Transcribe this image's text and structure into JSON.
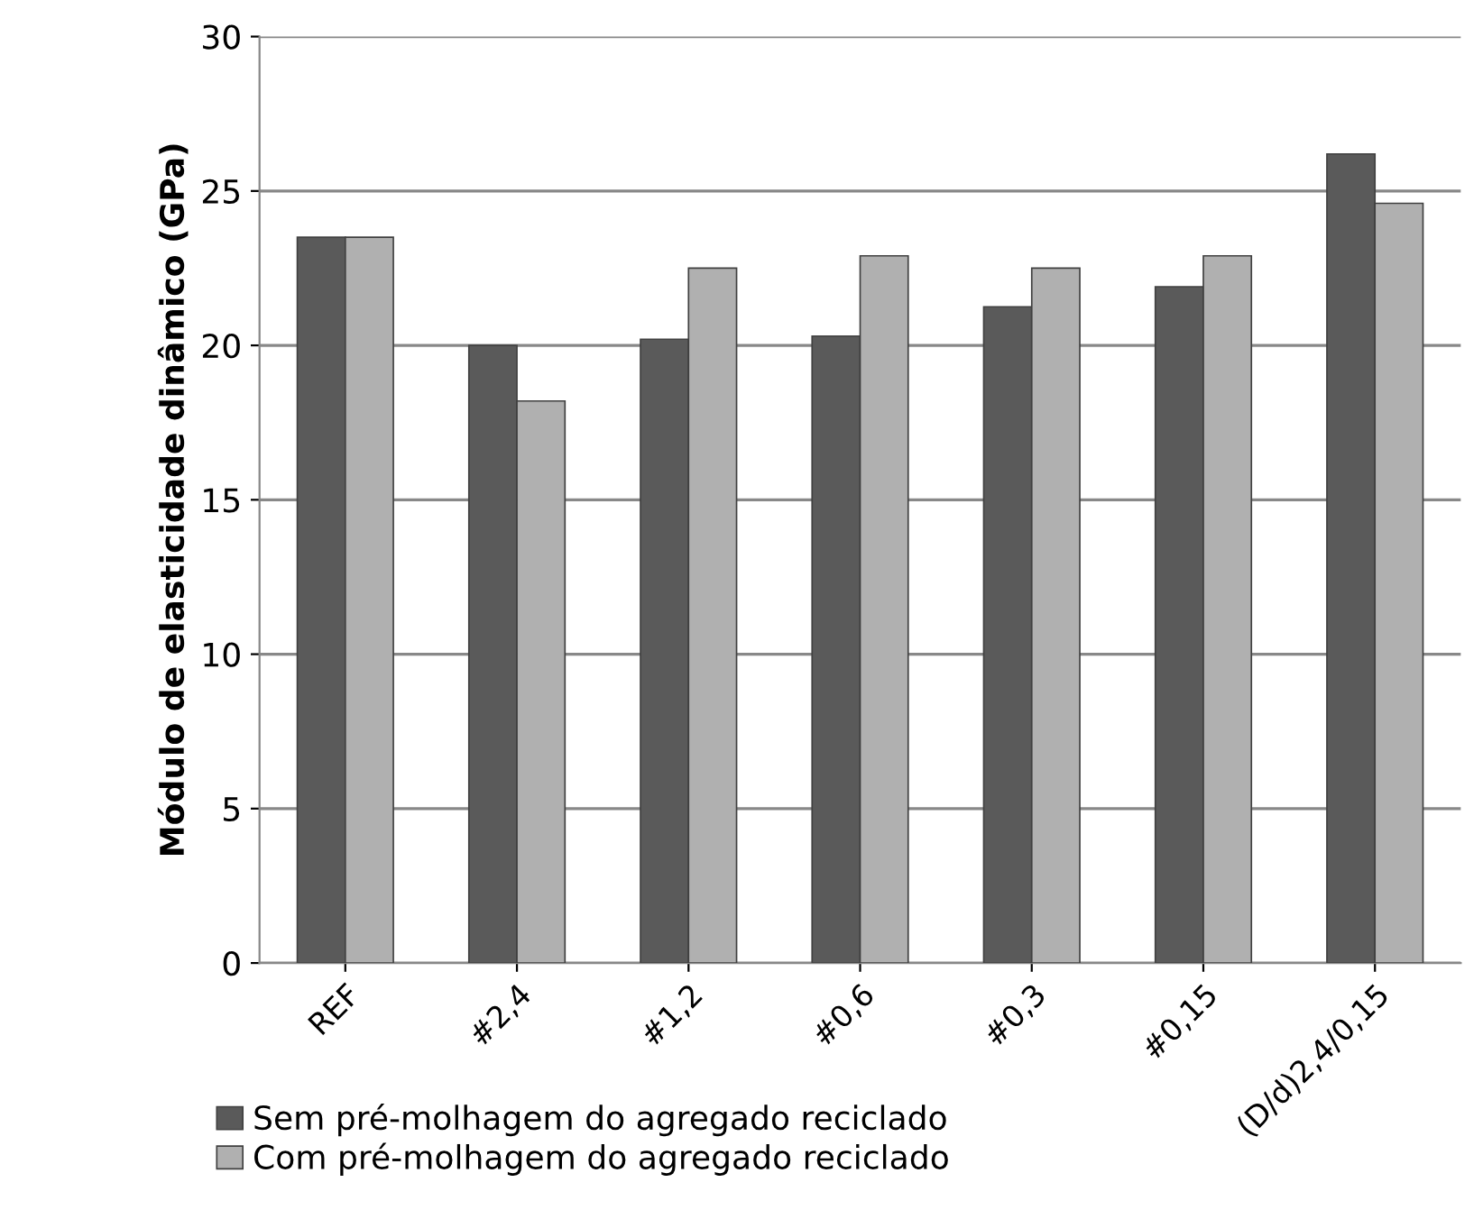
{
  "chart_data": {
    "type": "bar",
    "ylabel": "Módulo de elasticidade dinâmico (GPa)",
    "categories": [
      "REF",
      "#2,4",
      "#1,2",
      "#0,6",
      "#0,3",
      "#0,15",
      "(D/d)2,4/0,15"
    ],
    "series": [
      {
        "name": "Sem pré-molhagem do agregado reciclado",
        "color": "#5a5a5a",
        "values": [
          23.5,
          20.0,
          20.2,
          20.3,
          21.25,
          21.9,
          26.2
        ]
      },
      {
        "name": "Com pré-molhagem do agregado reciclado",
        "color": "#b0b0b0",
        "values": [
          23.5,
          18.2,
          22.5,
          22.9,
          22.5,
          22.9,
          24.6
        ]
      }
    ],
    "ylim": [
      0,
      30
    ],
    "yticks": [
      0,
      5,
      10,
      15,
      20,
      25,
      30
    ],
    "grid": "y",
    "legend": "bottom left"
  }
}
